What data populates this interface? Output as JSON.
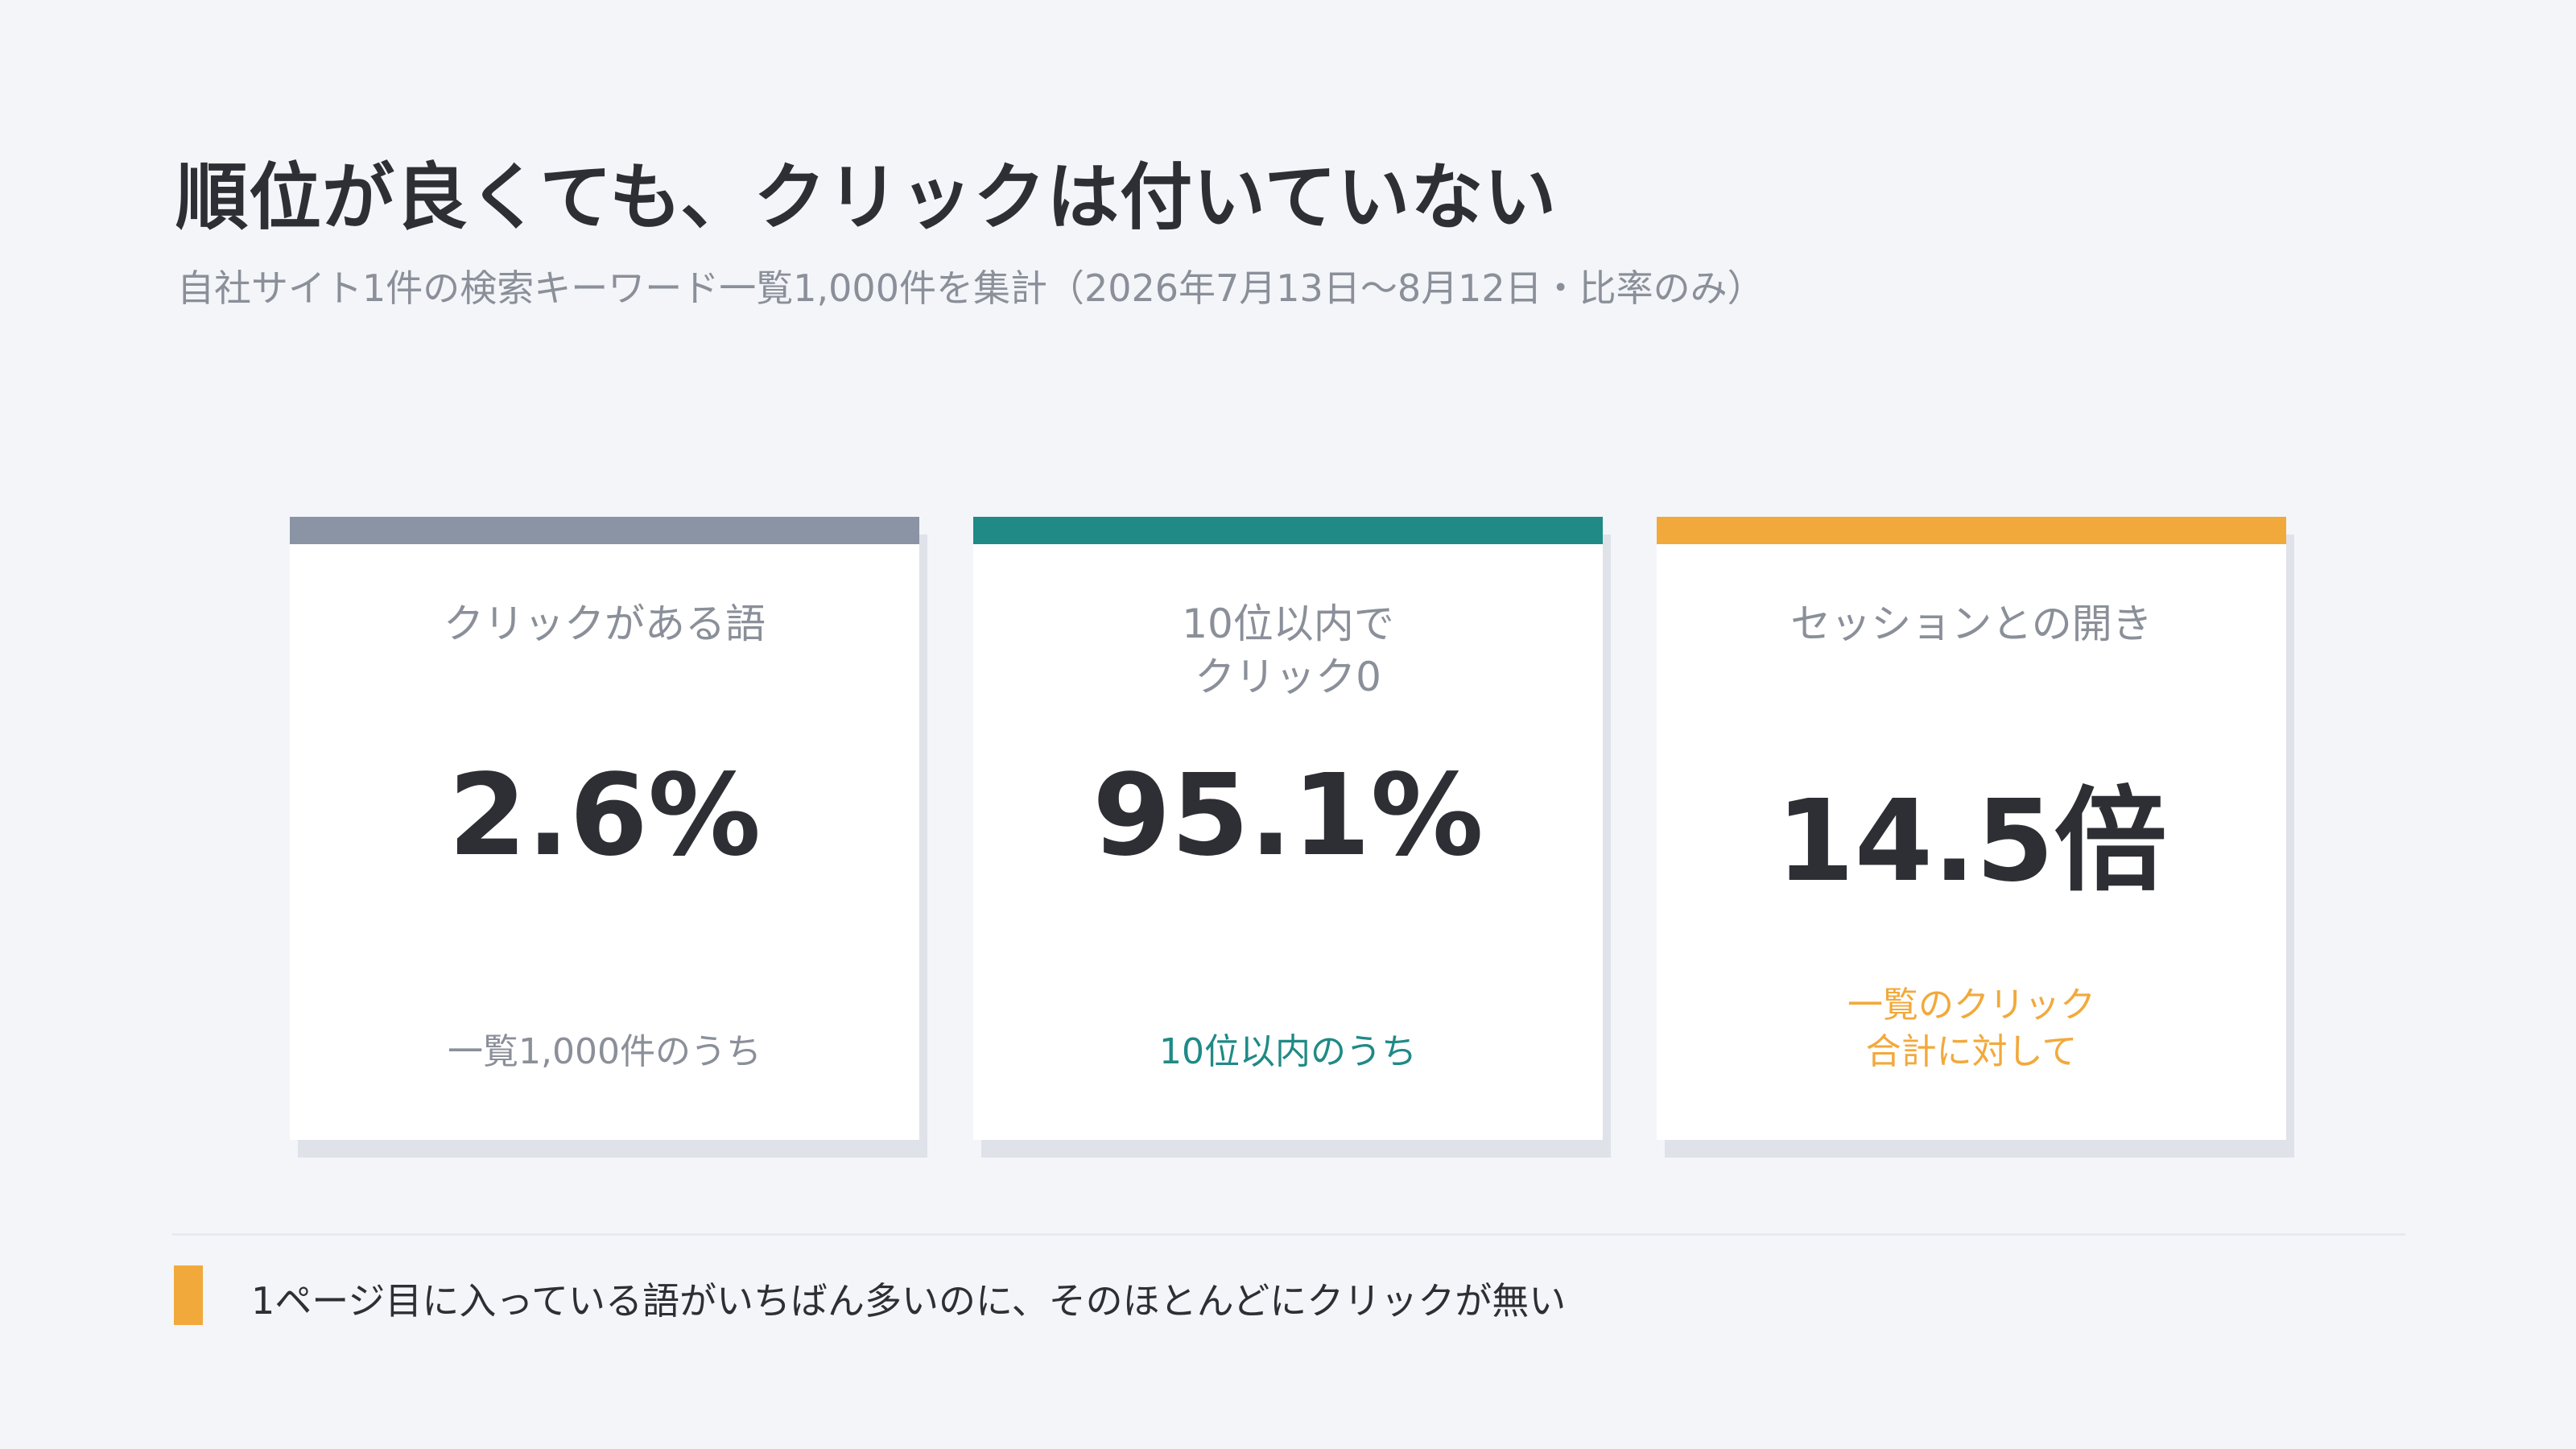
{
  "header": {
    "title": "順位が良くても、クリックは付いていない",
    "subtitle": "自社サイト1件の検索キーワード一覧1,000件を集計（2026年7月13日〜8月12日・比率のみ）"
  },
  "cards": [
    {
      "label": "クリックがある語",
      "value": "2.6%",
      "note": "一覧1,000件のうち",
      "accent": "#8a94a4",
      "note_color": "#8a8f99"
    },
    {
      "label": "10位以内で\nクリック0",
      "value": "95.1%",
      "note": "10位以内のうち",
      "accent": "#1f8a86",
      "note_color": "#1f8a86"
    },
    {
      "label": "セッションとの開き",
      "value": "14.5倍",
      "note": "一覧のクリック\n合計に対して",
      "accent": "#f2a93b",
      "note_color": "#f2a93b"
    }
  ],
  "takeaway": {
    "text": "1ページ目に入っている語がいちばん多いのに、そのほとんどにクリックが無い",
    "accent": "#f2a93b"
  }
}
